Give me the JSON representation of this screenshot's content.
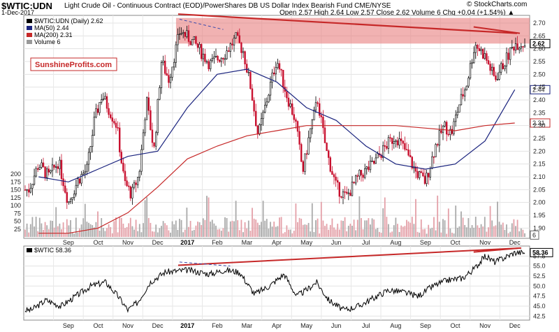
{
  "header": {
    "symbol": "$WTIC:UDN",
    "description": "Light Crude Oil - Continuous Contract (EOD)/PowerShares DB US Dollar Index Bearish Fund  CME/NYSE",
    "source": "© StockCharts.com",
    "date": "1-Dec-2017",
    "ohlc": "Open 2.57  High 2.64  Low 2.57  Close 2.62  Volume 6  Chg +0.04 (+1.54%) ▲"
  },
  "watermark": "SunshineProfits.com",
  "legend": {
    "main": "$WTIC:UDN (Daily) 2.62",
    "ma50": "MA(50) 2.44",
    "ma200": "MA(200) 2.31",
    "volume": "Volume 6",
    "lower": "$WTIC 58.36"
  },
  "colors": {
    "up": "#000000",
    "down": "#c8102e",
    "ma50": "#1a237e",
    "ma200": "#c62828",
    "resist": "#c62828",
    "zone": "#e57373"
  },
  "chart_data": [
    {
      "type": "candlestick",
      "title": "$WTIC:UDN (Daily) 2.62",
      "months": [
        "Aug",
        "Sep",
        "Oct",
        "Nov",
        "Dec",
        "2017",
        "Feb",
        "Mar",
        "Apr",
        "May",
        "Jun",
        "Jul",
        "Aug",
        "Sep",
        "Oct",
        "Nov",
        "Dec"
      ],
      "x_tick_labels": [
        "Sep",
        "Oct",
        "Nov",
        "Dec",
        "2017",
        "Feb",
        "Mar",
        "Apr",
        "May",
        "Jun",
        "Jul",
        "Aug",
        "Sep",
        "Oct",
        "Nov",
        "Dec"
      ],
      "y_ticks": [
        1.9,
        1.95,
        2.0,
        2.05,
        2.1,
        2.15,
        2.2,
        2.25,
        2.3,
        2.35,
        2.4,
        2.45,
        2.5,
        2.55,
        2.6,
        2.65,
        2.7
      ],
      "ylim": [
        1.86,
        2.73
      ],
      "close_path": [
        [
          "Aug",
          2.05
        ],
        [
          "Aug",
          2.15
        ],
        [
          "Aug",
          2.1
        ],
        [
          "Sep",
          2.16
        ],
        [
          "Sep",
          2.0
        ],
        [
          "Sep",
          2.09
        ],
        [
          "Oct",
          2.13
        ],
        [
          "Oct",
          2.32
        ],
        [
          "Oct",
          2.42
        ],
        [
          "Oct",
          2.36
        ],
        [
          "Nov",
          2.3
        ],
        [
          "Nov",
          2.08
        ],
        [
          "Nov",
          2.03
        ],
        [
          "Nov",
          2.11
        ],
        [
          "Dec",
          2.4
        ],
        [
          "Dec",
          2.2
        ],
        [
          "Dec",
          2.55
        ],
        [
          "Dec",
          2.48
        ],
        [
          "2017",
          2.67
        ],
        [
          "2017",
          2.62
        ],
        [
          "Feb",
          2.54
        ],
        [
          "Feb",
          2.58
        ],
        [
          "Mar",
          2.64
        ],
        [
          "Mar",
          2.59
        ],
        [
          "Mar",
          2.45
        ],
        [
          "Mar",
          2.26
        ],
        [
          "Apr",
          2.4
        ],
        [
          "Apr",
          2.56
        ],
        [
          "Apr",
          2.42
        ],
        [
          "May",
          2.32
        ],
        [
          "May",
          2.12
        ],
        [
          "May",
          2.28
        ],
        [
          "May",
          2.4
        ],
        [
          "Jun",
          2.2
        ],
        [
          "Jun",
          2.06
        ],
        [
          "Jun",
          2.02
        ],
        [
          "Jul",
          2.1
        ],
        [
          "Jul",
          2.15
        ],
        [
          "Aug",
          2.22
        ],
        [
          "Aug",
          2.26
        ],
        [
          "Aug",
          2.2
        ],
        [
          "Sep",
          2.12
        ],
        [
          "Sep",
          2.08
        ],
        [
          "Sep",
          2.22
        ],
        [
          "Oct",
          2.3
        ],
        [
          "Oct",
          2.27
        ],
        [
          "Oct",
          2.38
        ],
        [
          "Oct",
          2.46
        ],
        [
          "Nov",
          2.62
        ],
        [
          "Nov",
          2.57
        ],
        [
          "Nov",
          2.48
        ],
        [
          "Dec",
          2.62
        ]
      ],
      "ma50_path": [
        [
          "Aug",
          2.1
        ],
        [
          "Sep",
          2.08
        ],
        [
          "Oct",
          2.13
        ],
        [
          "Nov",
          2.18
        ],
        [
          "Dec",
          2.2
        ],
        [
          "2017",
          2.37
        ],
        [
          "Feb",
          2.5
        ],
        [
          "Mar",
          2.52
        ],
        [
          "Apr",
          2.47
        ],
        [
          "May",
          2.37
        ],
        [
          "Jun",
          2.32
        ],
        [
          "Jul",
          2.22
        ],
        [
          "Aug",
          2.15
        ],
        [
          "Sep",
          2.13
        ],
        [
          "Oct",
          2.15
        ],
        [
          "Nov",
          2.24
        ],
        [
          "Dec",
          2.44
        ]
      ],
      "ma200_path": [
        [
          "Aug",
          1.88
        ],
        [
          "Sep",
          1.88
        ],
        [
          "Oct",
          1.9
        ],
        [
          "Nov",
          1.96
        ],
        [
          "Dec",
          2.06
        ],
        [
          "2017",
          2.17
        ],
        [
          "Feb",
          2.22
        ],
        [
          "Mar",
          2.26
        ],
        [
          "Apr",
          2.28
        ],
        [
          "May",
          2.3
        ],
        [
          "Jun",
          2.3
        ],
        [
          "Jul",
          2.3
        ],
        [
          "Aug",
          2.3
        ],
        [
          "Sep",
          2.29
        ],
        [
          "Oct",
          2.28
        ],
        [
          "Nov",
          2.3
        ],
        [
          "Dec",
          2.31
        ]
      ],
      "volume_ticks": [
        25,
        50,
        75,
        100,
        125,
        150,
        175,
        200
      ],
      "resistance_zone": [
        2.62,
        2.72
      ],
      "value_labels": [
        "2.62",
        "2.44",
        "2.31",
        "6"
      ]
    },
    {
      "type": "line",
      "title": "$WTIC 58.36",
      "y_ticks": [
        42.5,
        45.0,
        47.5,
        50.0,
        52.5,
        55.0,
        57.5
      ],
      "ylim": [
        41.5,
        60.0
      ],
      "close_path": [
        [
          "Aug",
          44.0
        ],
        [
          "Aug",
          46.5
        ],
        [
          "Sep",
          45.0
        ],
        [
          "Sep",
          47.5
        ],
        [
          "Oct",
          50.0
        ],
        [
          "Oct",
          51.0
        ],
        [
          "Nov",
          47.5
        ],
        [
          "Nov",
          44.0
        ],
        [
          "Nov",
          46.0
        ],
        [
          "Dec",
          51.0
        ],
        [
          "Dec",
          53.5
        ],
        [
          "2017",
          54.0
        ],
        [
          "Feb",
          53.0
        ],
        [
          "Feb",
          54.0
        ],
        [
          "Mar",
          53.5
        ],
        [
          "Mar",
          48.0
        ],
        [
          "Apr",
          50.0
        ],
        [
          "Apr",
          53.0
        ],
        [
          "May",
          47.5
        ],
        [
          "May",
          49.0
        ],
        [
          "May",
          51.0
        ],
        [
          "Jun",
          46.5
        ],
        [
          "Jun",
          44.0
        ],
        [
          "Jul",
          45.0
        ],
        [
          "Jul",
          47.0
        ],
        [
          "Aug",
          49.0
        ],
        [
          "Aug",
          48.5
        ],
        [
          "Sep",
          47.5
        ],
        [
          "Sep",
          50.0
        ],
        [
          "Oct",
          51.5
        ],
        [
          "Oct",
          52.0
        ],
        [
          "Nov",
          54.5
        ],
        [
          "Nov",
          57.5
        ],
        [
          "Nov",
          56.0
        ],
        [
          "Dec",
          58.36
        ]
      ],
      "value_label": "58.36"
    }
  ]
}
